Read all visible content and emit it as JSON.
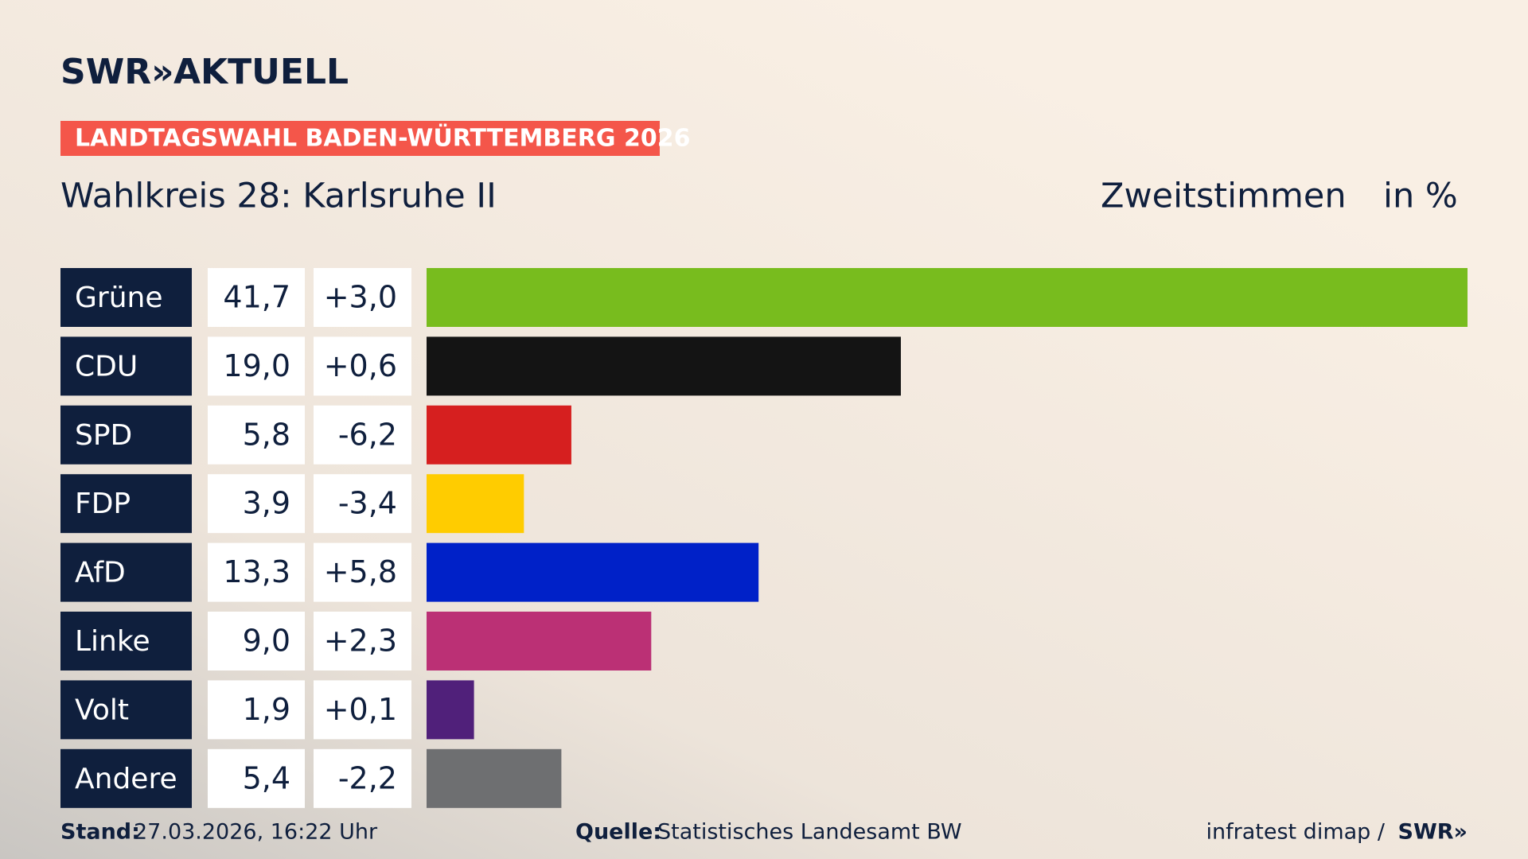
{
  "brand": {
    "logo": "SWR»",
    "logo_suffix": "AKTUELL"
  },
  "chart_data": {
    "type": "bar",
    "banner": "LANDTAGSWAHL BADEN-WÜRTTEMBERG 2026",
    "title": "Wahlkreis 28: Karlsruhe II",
    "measure": "Zweitstimmen",
    "unit": "in %",
    "categories": [
      "Grüne",
      "CDU",
      "SPD",
      "FDP",
      "AfD",
      "Linke",
      "Volt",
      "Andere"
    ],
    "values": [
      41.7,
      19.0,
      5.8,
      3.9,
      13.3,
      9.0,
      1.9,
      5.4
    ],
    "value_labels": [
      "41,7",
      "19,0",
      "5,8",
      "3,9",
      "13,3",
      "9,0",
      "1,9",
      "5,4"
    ],
    "changes": [
      3.0,
      0.6,
      -6.2,
      -3.4,
      5.8,
      2.3,
      0.1,
      -2.2
    ],
    "change_labels": [
      "+3,0",
      "+0,6",
      "-6,2",
      "-3,4",
      "+5,8",
      "+2,3",
      "+0,1",
      "-2,2"
    ],
    "colors": [
      "#78bc1e",
      "#141414",
      "#d61f1f",
      "#ffcc00",
      "#0021c8",
      "#bb3075",
      "#50207a",
      "#6e6f71"
    ],
    "xlim": [
      0,
      41.7
    ]
  },
  "footer": {
    "stand_label": "Stand:",
    "stand": "27.03.2026, 16:22 Uhr",
    "source_label": "Quelle:",
    "source": "Statistisches Landesamt BW",
    "credit": "infratest dimap /",
    "credit_logo": "SWR»"
  }
}
